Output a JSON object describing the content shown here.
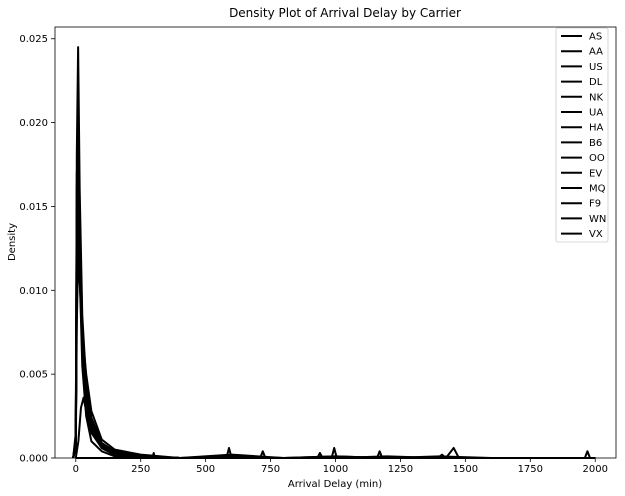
{
  "chart_data": {
    "type": "line",
    "title": "Density Plot of Arrival Delay by Carrier",
    "xlabel": "Arrival Delay (min)",
    "ylabel": "Density",
    "xlim": [
      -80,
      2080
    ],
    "ylim": [
      0,
      0.0257
    ],
    "xticks": [
      0,
      250,
      500,
      750,
      1000,
      1250,
      1500,
      1750,
      2000
    ],
    "xtick_labels": [
      "0",
      "250",
      "500",
      "750",
      "1000",
      "1250",
      "1500",
      "1750",
      "2000"
    ],
    "yticks": [
      0,
      0.005,
      0.01,
      0.015,
      0.02,
      0.025
    ],
    "ytick_labels": [
      "0.000",
      "0.005",
      "0.010",
      "0.015",
      "0.020",
      "0.025"
    ],
    "grid": false,
    "legend_position": "top-right",
    "line_color": "#000000",
    "series": [
      {
        "name": "AS",
        "x": [
          -10,
          0,
          4,
          9,
          15,
          25,
          40,
          60,
          100,
          150,
          250,
          400,
          600,
          800,
          1000,
          1200,
          1400,
          1600,
          1800,
          2000
        ],
        "y": [
          0,
          0.0012,
          0.0182,
          0.0245,
          0.016,
          0.0085,
          0.0045,
          0.002,
          0.0008,
          0.0003,
          0.0001,
          0.0,
          0.0,
          0.0,
          0.0,
          0.0,
          0.0,
          0.0,
          0.0,
          0.0
        ]
      },
      {
        "name": "AA",
        "x": [
          -10,
          0,
          4,
          9,
          15,
          25,
          40,
          60,
          100,
          150,
          250,
          400,
          600,
          800,
          1000,
          1200,
          1400,
          1600,
          1800,
          2000
        ],
        "y": [
          0,
          0.001,
          0.015,
          0.0192,
          0.014,
          0.008,
          0.004,
          0.0018,
          0.0006,
          0.0002,
          0.0001,
          0.0,
          0.0002,
          0.0,
          0.0001,
          0.0,
          0.0001,
          0.0,
          0.0,
          0.0
        ]
      },
      {
        "name": "US",
        "x": [
          -10,
          0,
          4,
          9,
          15,
          25,
          40,
          60,
          100,
          150,
          250,
          400,
          600,
          800,
          1000,
          1200,
          1400,
          1600,
          1800,
          2000
        ],
        "y": [
          0,
          0.0009,
          0.013,
          0.017,
          0.0125,
          0.007,
          0.0035,
          0.0016,
          0.0006,
          0.0003,
          0.0001,
          0.0,
          0.0,
          0.0,
          0.0,
          0.0,
          0.0,
          0.0,
          0.0,
          0.0
        ]
      },
      {
        "name": "DL",
        "x": [
          -10,
          0,
          4,
          9,
          15,
          25,
          40,
          60,
          100,
          150,
          250,
          400,
          600,
          800,
          1000,
          1200,
          1400,
          1600,
          1800,
          2000
        ],
        "y": [
          0,
          0.0011,
          0.016,
          0.0185,
          0.013,
          0.0072,
          0.0036,
          0.0016,
          0.0006,
          0.0002,
          0.0001,
          0.0,
          0.0,
          0.0,
          0.0001,
          0.0,
          0.0,
          0.0,
          0.0,
          0.0
        ]
      },
      {
        "name": "NK",
        "x": [
          -10,
          0,
          4,
          9,
          15,
          25,
          40,
          60,
          100,
          150,
          250,
          400,
          600,
          800,
          1000,
          1200,
          1400,
          1600,
          1800,
          2000
        ],
        "y": [
          0,
          0.0008,
          0.011,
          0.015,
          0.012,
          0.0075,
          0.0042,
          0.0022,
          0.0008,
          0.0003,
          0.0001,
          0.0,
          0.0,
          0.0,
          0.0,
          0.0,
          0.0,
          0.0,
          0.0,
          0.0
        ]
      },
      {
        "name": "UA",
        "x": [
          -10,
          0,
          4,
          9,
          15,
          25,
          40,
          60,
          100,
          150,
          250,
          400,
          600,
          800,
          1000,
          1200,
          1400,
          1600,
          1800,
          2000
        ],
        "y": [
          0,
          0.0009,
          0.0125,
          0.0165,
          0.0128,
          0.0078,
          0.004,
          0.0019,
          0.0007,
          0.0003,
          0.0001,
          0.0,
          0.0,
          0.0,
          0.0,
          0.0001,
          0.0,
          0.0,
          0.0,
          0.0
        ]
      },
      {
        "name": "HA",
        "x": [
          -10,
          0,
          4,
          9,
          15,
          25,
          40,
          60,
          100,
          150,
          250,
          400,
          600,
          800,
          1000,
          1200,
          1400,
          1600,
          1800,
          2000
        ],
        "y": [
          0,
          0.0015,
          0.017,
          0.018,
          0.011,
          0.0055,
          0.0025,
          0.001,
          0.0004,
          0.0001,
          0.0,
          0.0,
          0.0,
          0.0,
          0.0,
          0.0,
          0.0,
          0.0,
          0.0,
          0.0
        ]
      },
      {
        "name": "B6",
        "x": [
          -10,
          0,
          4,
          9,
          15,
          25,
          40,
          60,
          100,
          150,
          250,
          400,
          600,
          800,
          1000,
          1200,
          1400,
          1600,
          1800,
          2000
        ],
        "y": [
          0,
          0.0007,
          0.01,
          0.014,
          0.0115,
          0.0075,
          0.0045,
          0.0024,
          0.0009,
          0.0004,
          0.0001,
          0.0,
          0.0,
          0.0,
          0.0,
          0.0,
          0.0,
          0.0,
          0.0,
          0.0
        ]
      },
      {
        "name": "OO",
        "x": [
          -10,
          0,
          4,
          9,
          15,
          25,
          40,
          60,
          100,
          150,
          250,
          400,
          600,
          800,
          1000,
          1200,
          1400,
          1600,
          1800,
          2000
        ],
        "y": [
          0,
          0.0008,
          0.0115,
          0.0155,
          0.0118,
          0.007,
          0.0038,
          0.0018,
          0.0007,
          0.0003,
          0.0001,
          0.0,
          0.0001,
          0.0,
          0.0,
          0.0,
          0.0,
          0.0,
          0.0,
          0.0
        ]
      },
      {
        "name": "EV",
        "x": [
          -10,
          0,
          4,
          9,
          15,
          25,
          40,
          60,
          100,
          150,
          250,
          400,
          600,
          800,
          1000,
          1200,
          1400,
          1600,
          1800,
          2000
        ],
        "y": [
          0,
          0.0007,
          0.0105,
          0.0145,
          0.0115,
          0.0072,
          0.0042,
          0.0021,
          0.0008,
          0.0003,
          0.0001,
          0.0,
          0.0,
          0.0,
          0.0,
          0.0,
          0.0,
          0.0,
          0.0,
          0.0
        ]
      },
      {
        "name": "MQ",
        "x": [
          -10,
          0,
          4,
          9,
          15,
          25,
          40,
          60,
          100,
          150,
          250,
          400,
          600,
          800,
          1000,
          1200,
          1400,
          1600,
          1800,
          2000
        ],
        "y": [
          0,
          0.0008,
          0.0112,
          0.015,
          0.0116,
          0.007,
          0.0039,
          0.0019,
          0.0007,
          0.0003,
          0.0001,
          0.0,
          0.0,
          0.0,
          0.0,
          0.0,
          0.0,
          0.0,
          0.0,
          0.0
        ]
      },
      {
        "name": "F9",
        "x": [
          -10,
          0,
          4,
          9,
          15,
          25,
          40,
          60,
          100,
          150,
          250,
          400,
          600,
          800,
          1000,
          1200,
          1400,
          1600,
          1800,
          2000
        ],
        "y": [
          0,
          0.0005,
          0.008,
          0.012,
          0.0105,
          0.0075,
          0.005,
          0.0028,
          0.0011,
          0.0005,
          0.0002,
          0.0,
          0.0,
          0.0,
          0.0,
          0.0,
          0.0,
          0.0,
          0.0,
          0.0
        ]
      },
      {
        "name": "WN",
        "x": [
          -10,
          0,
          4,
          9,
          15,
          25,
          40,
          60,
          100,
          150,
          250,
          400,
          600,
          800,
          1000,
          1200,
          1400,
          1600,
          1800,
          2000
        ],
        "y": [
          0,
          0.001,
          0.014,
          0.0175,
          0.013,
          0.0078,
          0.004,
          0.0018,
          0.0006,
          0.0002,
          0.0001,
          0.0,
          0.0,
          0.0,
          0.0,
          0.0,
          0.0,
          0.0,
          0.0,
          0.0
        ]
      },
      {
        "name": "VX",
        "x": [
          -10,
          0,
          4,
          9,
          15,
          25,
          40,
          60,
          100,
          150,
          250,
          400,
          600,
          800,
          1000,
          1200,
          1400,
          1600,
          1800,
          2000
        ],
        "y": [
          0,
          0.0008,
          0.0118,
          0.016,
          0.0122,
          0.0073,
          0.0038,
          0.0017,
          0.0006,
          0.0002,
          0.0001,
          0.0,
          0.0,
          0.0,
          0.0,
          0.0,
          0.0,
          0.0,
          0.0,
          0.0
        ]
      },
      {
        "name": "",
        "x": [
          0,
          10,
          20,
          30,
          40,
          60,
          100,
          150,
          250,
          400,
          600,
          800,
          1000,
          1200,
          1400,
          1600,
          1800,
          2000
        ],
        "y": [
          0,
          0.001,
          0.003,
          0.0036,
          0.0028,
          0.0015,
          0.0006,
          0.0002,
          0.0001,
          0.0,
          0.0,
          0.0,
          0.0,
          0.0,
          0.0,
          0.0,
          0.0,
          0.0
        ]
      },
      {
        "name": "",
        "x": [
          0,
          295,
          300,
          305,
          580,
          590,
          600,
          710,
          720,
          730,
          930,
          940,
          950,
          985,
          995,
          1005,
          1160,
          1170,
          1180,
          1395,
          1410,
          1425,
          1440,
          1455,
          1465,
          1475,
          1490,
          1960,
          1970,
          1980,
          2000
        ],
        "y": [
          0,
          0,
          0.0003,
          0,
          0,
          0.0006,
          0,
          0,
          0.0004,
          0,
          0,
          0.0003,
          0,
          0,
          0.0006,
          0,
          0,
          0.0004,
          0,
          0,
          0.0002,
          0,
          0.0003,
          0.0006,
          0.0003,
          0,
          0,
          0,
          0.0004,
          0,
          0
        ]
      }
    ]
  }
}
